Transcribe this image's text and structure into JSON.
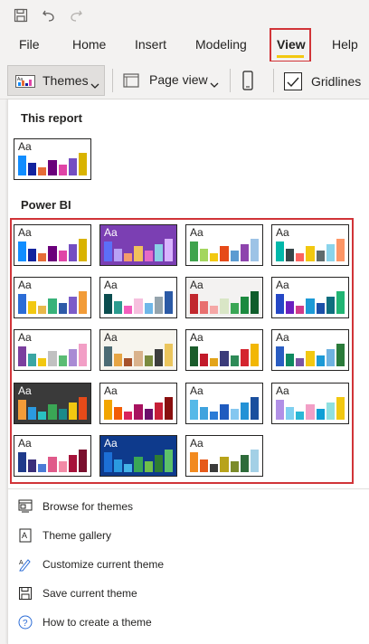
{
  "quick_access": {
    "icons": [
      "save-icon",
      "undo-icon",
      "redo-icon"
    ]
  },
  "menu": {
    "items": [
      {
        "label": "File"
      },
      {
        "label": "Home"
      },
      {
        "label": "Insert"
      },
      {
        "label": "Modeling"
      },
      {
        "label": "View"
      },
      {
        "label": "Help"
      }
    ],
    "selected": "View",
    "highlight_color": "#d13438",
    "underline_color": "#f2c811"
  },
  "toolbar": {
    "themes_label": "Themes",
    "page_view_label": "Page view",
    "gridlines_label": "Gridlines",
    "gridlines_checked": true
  },
  "panel": {
    "this_report_label": "This report",
    "power_bi_label": "Power BI",
    "sample_text": "Aa",
    "this_report_theme": {
      "bg": "#ffffff",
      "text": "#252423",
      "colors": [
        "#118dff",
        "#12239e",
        "#e66c37",
        "#6b007b",
        "#e044a7",
        "#744ec2",
        "#d9b300"
      ]
    },
    "themes": [
      {
        "bg": "#ffffff",
        "text": "#252423",
        "colors": [
          "#118dff",
          "#12239e",
          "#e66c37",
          "#6b007b",
          "#e044a7",
          "#744ec2",
          "#d9b300"
        ]
      },
      {
        "bg": "#7b3fb3",
        "text": "#ffffff",
        "colors": [
          "#5c6ff7",
          "#b8a2f5",
          "#f39c6b",
          "#f0c15b",
          "#e56bc6",
          "#8ad0e6",
          "#d9b3ff"
        ]
      },
      {
        "bg": "#ffffff",
        "text": "#252423",
        "colors": [
          "#3fa34d",
          "#a4d65e",
          "#f2c811",
          "#e64a19",
          "#5c9bd1",
          "#8e44ad",
          "#9dc3e6"
        ]
      },
      {
        "bg": "#ffffff",
        "text": "#252423",
        "colors": [
          "#01b8aa",
          "#374649",
          "#fd625e",
          "#f2c80f",
          "#5f6b6d",
          "#8ad4eb",
          "#fe9666"
        ]
      },
      {
        "bg": "#ffffff",
        "text": "#252423",
        "colors": [
          "#2b6cd6",
          "#f2c811",
          "#e8b84a",
          "#38b27a",
          "#2e5aa8",
          "#7c5cc9",
          "#f29c38"
        ]
      },
      {
        "bg": "#ffffff",
        "text": "#252423",
        "colors": [
          "#0b4d4f",
          "#2b9c8f",
          "#f35ebd",
          "#f6c0de",
          "#6fb7e8",
          "#95a4ad",
          "#2b5aa6"
        ]
      },
      {
        "bg": "#f3f2f1",
        "text": "#252423",
        "colors": [
          "#c1272d",
          "#e8706f",
          "#f5a7a6",
          "#d9e6c6",
          "#3aa655",
          "#1b8a3f",
          "#0f5d2b"
        ]
      },
      {
        "bg": "#ffffff",
        "text": "#252423",
        "colors": [
          "#2548c6",
          "#6b1fbf",
          "#d13b8a",
          "#1c9ad6",
          "#1b4fa8",
          "#0f6e7e",
          "#21b573"
        ]
      },
      {
        "bg": "#ffffff",
        "text": "#252423",
        "colors": [
          "#7b3f9e",
          "#3aa6a3",
          "#f2c811",
          "#c1c1c1",
          "#5bbc74",
          "#a98bd4",
          "#f29fc6"
        ]
      },
      {
        "bg": "#f7f5ee",
        "text": "#252423",
        "colors": [
          "#4c6b73",
          "#e6a544",
          "#a6522b",
          "#d9b28c",
          "#7b8b3f",
          "#3d3d3d",
          "#ebc55c"
        ]
      },
      {
        "bg": "#ffffff",
        "text": "#252423",
        "colors": [
          "#1a5c2b",
          "#c21a2a",
          "#e3a41a",
          "#3b3b7a",
          "#2e8b57",
          "#d4242e",
          "#f2b705"
        ]
      },
      {
        "bg": "#ffffff",
        "text": "#252423",
        "colors": [
          "#2a5dc2",
          "#0f8a5f",
          "#7b55a3",
          "#f2c811",
          "#1c9ad6",
          "#6fb2e0",
          "#2b7b3a"
        ]
      },
      {
        "bg": "#3a3a3a",
        "text": "#ffffff",
        "colors": [
          "#f29c38",
          "#2b9ae0",
          "#29c1c1",
          "#3aa655",
          "#1b8a8a",
          "#f2c811",
          "#e64a19"
        ]
      },
      {
        "bg": "#ffffff",
        "text": "#252423",
        "colors": [
          "#f2a500",
          "#f25c05",
          "#d9225c",
          "#a8125f",
          "#6b0f6b",
          "#c71f37",
          "#8a0f0f"
        ]
      },
      {
        "bg": "#ffffff",
        "text": "#252423",
        "colors": [
          "#55b9e8",
          "#3fa3de",
          "#2b7bd6",
          "#1f5bbf",
          "#85c7f0",
          "#2492d6",
          "#1a4f9e"
        ]
      },
      {
        "bg": "#ffffff",
        "text": "#252423",
        "colors": [
          "#b190e6",
          "#7fd0f0",
          "#2ab7d6",
          "#f29fc6",
          "#0f9fd6",
          "#8fe0e0",
          "#f2c811"
        ]
      },
      {
        "bg": "#ffffff",
        "text": "#252423",
        "colors": [
          "#1f3a8a",
          "#3b2f7a",
          "#4b7bd6",
          "#e05a8a",
          "#f28aa6",
          "#a6123a",
          "#7a0f2e"
        ]
      },
      {
        "bg": "#0e3a8c",
        "text": "#ffffff",
        "colors": [
          "#1c6fd6",
          "#2b9ae0",
          "#44b3e6",
          "#3aa655",
          "#6fbf4a",
          "#2e7d32",
          "#5cc16a"
        ]
      },
      {
        "bg": "#ffffff",
        "text": "#252423",
        "colors": [
          "#f28a1f",
          "#e65a1a",
          "#3b3b3b",
          "#b8a31a",
          "#7b8b2a",
          "#2e6b3a",
          "#a3d0e6"
        ]
      }
    ],
    "actions": [
      {
        "icon": "browse-themes-icon",
        "label": "Browse for themes"
      },
      {
        "icon": "theme-gallery-icon",
        "label": "Theme gallery"
      },
      {
        "icon": "customize-theme-icon",
        "label": "Customize current theme"
      },
      {
        "icon": "save-theme-icon",
        "label": "Save current theme"
      },
      {
        "icon": "help-icon",
        "label": "How to create a theme"
      }
    ]
  }
}
